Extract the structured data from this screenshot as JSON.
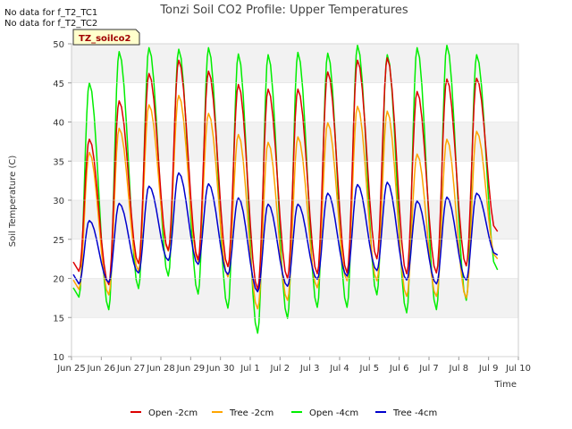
{
  "chart_data": {
    "type": "line",
    "title": "Tonzi Soil CO2 Profile: Upper Temperatures",
    "xlabel": "Time",
    "ylabel": "Soil Temperature (C)",
    "ylim": [
      10,
      50
    ],
    "xlim": [
      0,
      15
    ],
    "grid": "horizontal bands",
    "legend": "bottom",
    "notes": [
      "No data for f_T2_TC1",
      "No data for f_T2_TC2"
    ],
    "badge": "TZ_soilco2",
    "x_ticks": [
      {
        "pos": 0,
        "label": "Jun 25"
      },
      {
        "pos": 1,
        "label": "Jun 26"
      },
      {
        "pos": 2,
        "label": "Jun 27"
      },
      {
        "pos": 3,
        "label": "Jun 28"
      },
      {
        "pos": 4,
        "label": "Jun 29"
      },
      {
        "pos": 5,
        "label": "Jun 30"
      },
      {
        "pos": 6,
        "label": "Jul 1"
      },
      {
        "pos": 7,
        "label": "Jul 2"
      },
      {
        "pos": 8,
        "label": "Jul 3"
      },
      {
        "pos": 9,
        "label": "Jul 4"
      },
      {
        "pos": 10,
        "label": "Jul 5"
      },
      {
        "pos": 11,
        "label": "Jul 6"
      },
      {
        "pos": 12,
        "label": "Jul 7"
      },
      {
        "pos": 13,
        "label": "Jul 8"
      },
      {
        "pos": 14,
        "label": "Jul 9"
      },
      {
        "pos": 15,
        "label": "Jul 10"
      }
    ],
    "y_ticks": [
      10,
      15,
      20,
      25,
      30,
      35,
      40,
      45,
      50
    ],
    "series": [
      {
        "name": "Open -2cm",
        "color": "#dd0000",
        "min": [
          20.9,
          19.2,
          21.9,
          23.6,
          22.4,
          21.5,
          18.6,
          20.0,
          20.6,
          20.7,
          22.5,
          20.6,
          20.7,
          21.6,
          26.0
        ],
        "max": [
          37.8,
          42.7,
          46.2,
          47.9,
          46.5,
          44.8,
          44.2,
          44.2,
          46.4,
          47.9,
          48.2,
          43.9,
          45.5,
          45.6
        ]
      },
      {
        "name": "Tree -2cm",
        "color": "#ffa500",
        "min": [
          18.6,
          17.9,
          21.0,
          23.5,
          22.2,
          20.2,
          16.1,
          17.2,
          18.8,
          19.7,
          19.7,
          17.7,
          17.7,
          17.5,
          22.5
        ],
        "max": [
          36.1,
          39.2,
          42.2,
          43.4,
          41.1,
          38.4,
          37.4,
          38.1,
          39.9,
          42.0,
          41.4,
          35.9,
          37.8,
          38.8
        ]
      },
      {
        "name": "Open -4cm",
        "color": "#00ee00",
        "min": [
          17.6,
          16.0,
          18.7,
          20.3,
          18.0,
          16.2,
          13.0,
          14.9,
          16.3,
          16.3,
          17.9,
          15.6,
          16.0,
          17.2,
          21.1
        ],
        "max": [
          45.0,
          49.0,
          49.5,
          49.3,
          49.5,
          48.7,
          48.6,
          48.9,
          48.8,
          49.8,
          48.6,
          49.5,
          49.8,
          48.6
        ]
      },
      {
        "name": "Tree -4cm",
        "color": "#0000cc",
        "min": [
          19.3,
          19.5,
          20.7,
          22.3,
          21.8,
          20.5,
          18.3,
          19.0,
          19.9,
          20.3,
          21.0,
          19.8,
          19.3,
          19.8,
          23.0
        ],
        "max": [
          27.4,
          29.6,
          31.8,
          33.5,
          32.1,
          30.3,
          29.5,
          29.5,
          30.9,
          32.0,
          32.3,
          29.9,
          30.4,
          30.9
        ]
      }
    ]
  }
}
